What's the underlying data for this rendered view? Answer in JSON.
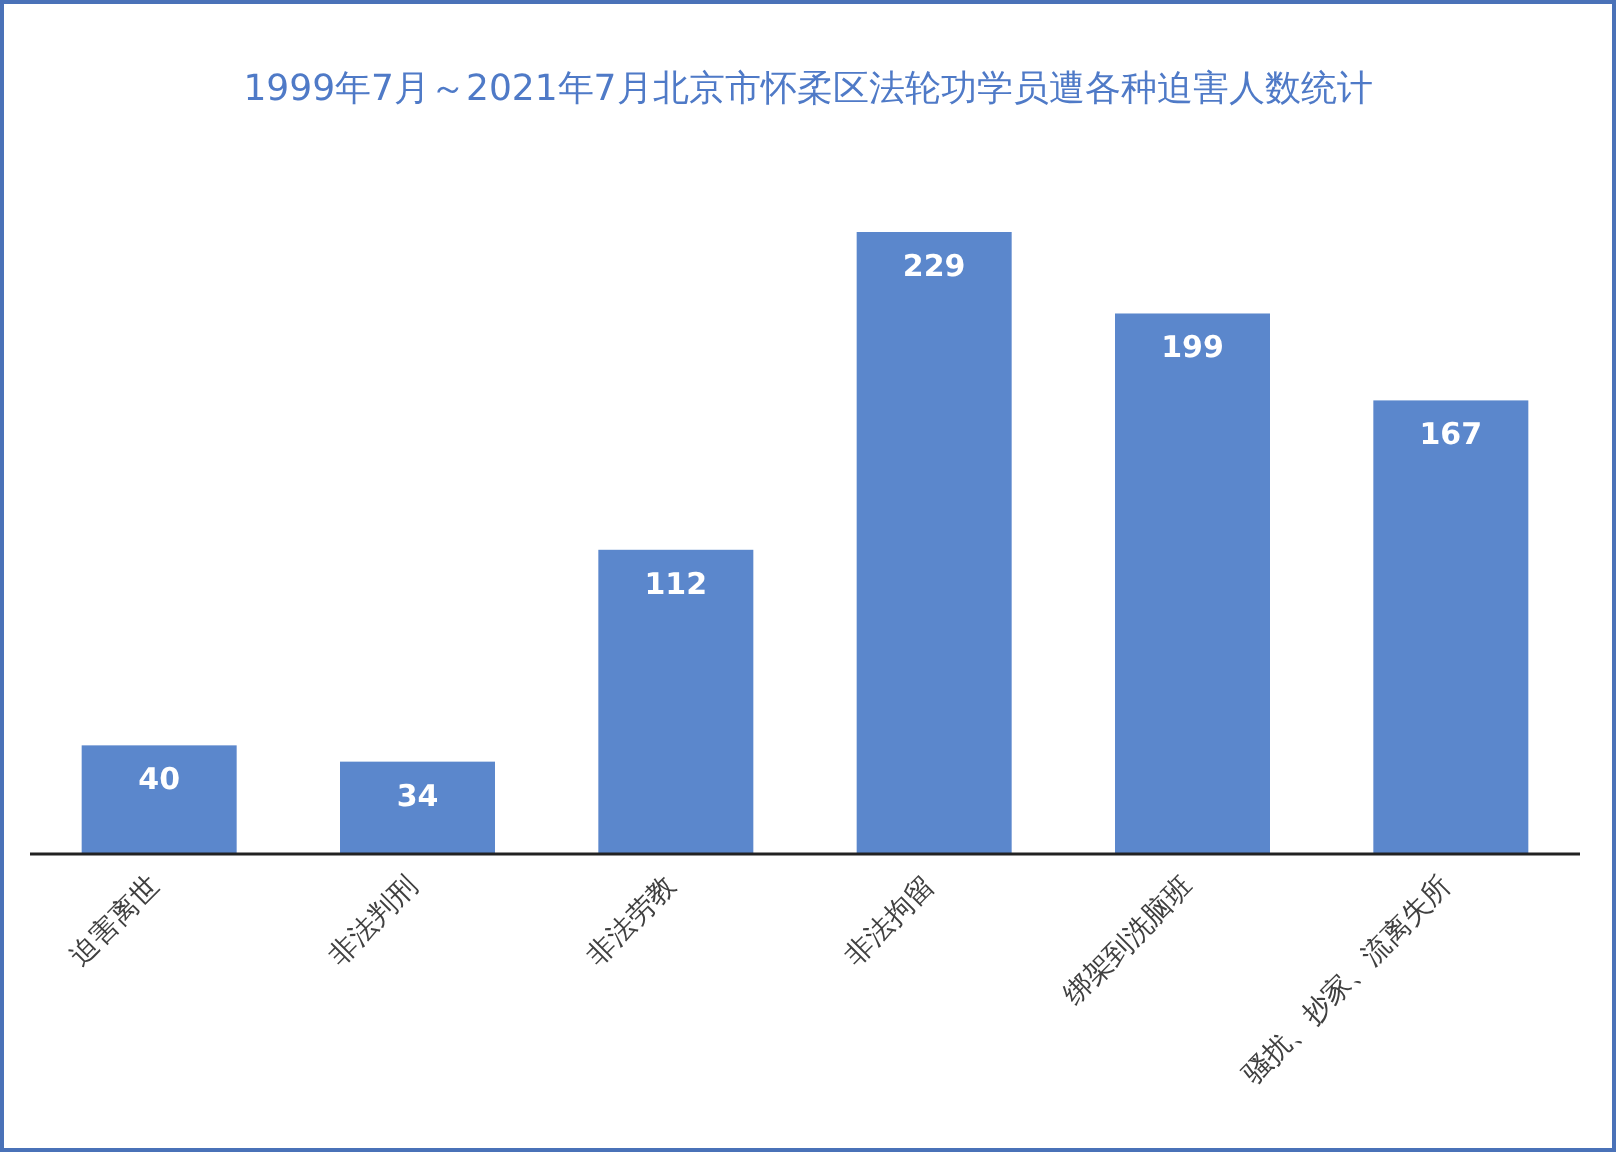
{
  "chart_data": {
    "type": "bar",
    "title": "1999年7月～2021年7月北京市怀柔区法轮功学员遭各种迫害人数统计",
    "categories": [
      "迫害离世",
      "非法判刑",
      "非法劳教",
      "非法拘留",
      "绑架到洗脑班",
      "骚扰、抄家、流离失所"
    ],
    "values": [
      40,
      34,
      112,
      229,
      199,
      167
    ],
    "color": "#5b87cc",
    "data_labels": true
  }
}
